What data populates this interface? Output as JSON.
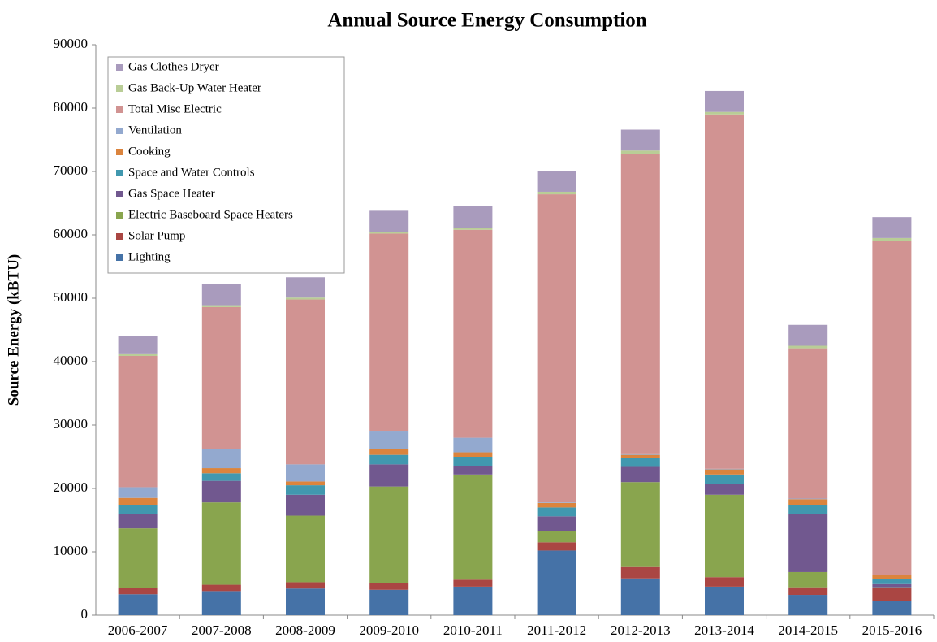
{
  "chart_data": {
    "type": "stacked-bar",
    "title": "Annual Source Energy Consumption",
    "y_label": "Source Energy (kBTU)",
    "categories": [
      "2006-2007",
      "2007-2008",
      "2008-2009",
      "2009-2010",
      "2010-2011",
      "2011-2012",
      "2012-2013",
      "2013-2014",
      "2014-2015",
      "2015-2016"
    ],
    "series": [
      {
        "name": "Lighting",
        "color": "#4572a7",
        "values": [
          3300,
          3800,
          4200,
          4000,
          4500,
          10200,
          5800,
          4500,
          3200,
          2300
        ]
      },
      {
        "name": "Solar Pump",
        "color": "#aa4643",
        "values": [
          1000,
          1000,
          1000,
          1100,
          1100,
          1300,
          1800,
          1500,
          1200,
          2000
        ]
      },
      {
        "name": "Electric Baseboard Space Heaters",
        "color": "#89a54e",
        "values": [
          9400,
          13000,
          10500,
          15200,
          16600,
          1800,
          13400,
          13000,
          2400,
          100
        ]
      },
      {
        "name": "Gas Space Heater",
        "color": "#71588f",
        "values": [
          2300,
          3400,
          3300,
          3500,
          1300,
          2300,
          2400,
          1700,
          9200,
          500
        ]
      },
      {
        "name": "Space and Water Controls",
        "color": "#4198af",
        "values": [
          1400,
          1200,
          1500,
          1500,
          1500,
          1400,
          1400,
          1500,
          1400,
          800
        ]
      },
      {
        "name": "Cooking",
        "color": "#db843d",
        "values": [
          1100,
          800,
          600,
          900,
          700,
          700,
          500,
          800,
          900,
          600
        ]
      },
      {
        "name": "Ventilation",
        "color": "#93a9cf",
        "values": [
          1700,
          3000,
          2700,
          2900,
          2300,
          100,
          100,
          100,
          100,
          100
        ]
      },
      {
        "name": "Total Misc Electric",
        "color": "#d19392",
        "values": [
          20700,
          22400,
          26000,
          31100,
          32800,
          48600,
          47400,
          55900,
          23700,
          52700
        ]
      },
      {
        "name": "Gas Back-Up Water Heater",
        "color": "#b9cd96",
        "values": [
          400,
          300,
          300,
          300,
          300,
          400,
          500,
          400,
          400,
          400
        ]
      },
      {
        "name": "Gas Clothes Dryer",
        "color": "#a99bbd",
        "values": [
          2700,
          3300,
          3200,
          3300,
          3400,
          3200,
          3300,
          3300,
          3300,
          3300
        ]
      }
    ],
    "ylim": [
      0,
      90000
    ],
    "yticks": [
      0,
      10000,
      20000,
      30000,
      40000,
      50000,
      60000,
      70000,
      80000,
      90000
    ],
    "grid": false,
    "legend": "top-left"
  }
}
